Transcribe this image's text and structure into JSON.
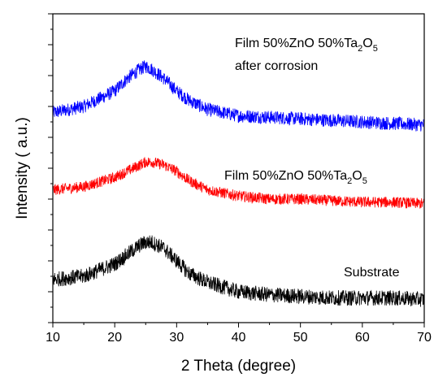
{
  "chart_data": {
    "type": "line",
    "xlabel": "2 Theta (degree)",
    "ylabel": "Intensity ( a.u.)",
    "xlim": [
      10,
      70
    ],
    "x_ticks": [
      "10",
      "20",
      "30",
      "40",
      "50",
      "60",
      "70"
    ],
    "grid": false,
    "y_tick_labels_shown": false,
    "series": [
      {
        "label_lines": [
          "Film 50%ZnO 50%Ta2O5",
          "after corrosion"
        ],
        "color": "#0000ff",
        "x": [
          10,
          15,
          20,
          22,
          24,
          25,
          26,
          28,
          30,
          32,
          35,
          40,
          45,
          50,
          55,
          60,
          65,
          70
        ],
        "values": [
          0.68,
          0.7,
          0.75,
          0.79,
          0.82,
          0.83,
          0.82,
          0.79,
          0.75,
          0.72,
          0.69,
          0.67,
          0.665,
          0.66,
          0.655,
          0.65,
          0.645,
          0.64
        ],
        "noise": 0.022
      },
      {
        "label_lines": [
          "Film 50%ZnO 50%Ta2O5"
        ],
        "color": "#ff0000",
        "x": [
          10,
          15,
          20,
          22,
          24,
          25,
          26,
          28,
          30,
          32,
          35,
          40,
          45,
          50,
          55,
          60,
          65,
          70
        ],
        "values": [
          0.43,
          0.44,
          0.47,
          0.49,
          0.51,
          0.52,
          0.52,
          0.51,
          0.49,
          0.46,
          0.43,
          0.41,
          0.4,
          0.4,
          0.395,
          0.39,
          0.39,
          0.385
        ],
        "noise": 0.018
      },
      {
        "label_lines": [
          "Substrate"
        ],
        "color": "#000000",
        "x": [
          10,
          15,
          20,
          22,
          24,
          25,
          26,
          28,
          30,
          32,
          35,
          40,
          45,
          50,
          55,
          60,
          65,
          70
        ],
        "values": [
          0.14,
          0.15,
          0.19,
          0.22,
          0.25,
          0.26,
          0.26,
          0.24,
          0.2,
          0.16,
          0.13,
          0.1,
          0.09,
          0.085,
          0.08,
          0.08,
          0.08,
          0.075
        ],
        "noise": 0.025
      }
    ]
  }
}
